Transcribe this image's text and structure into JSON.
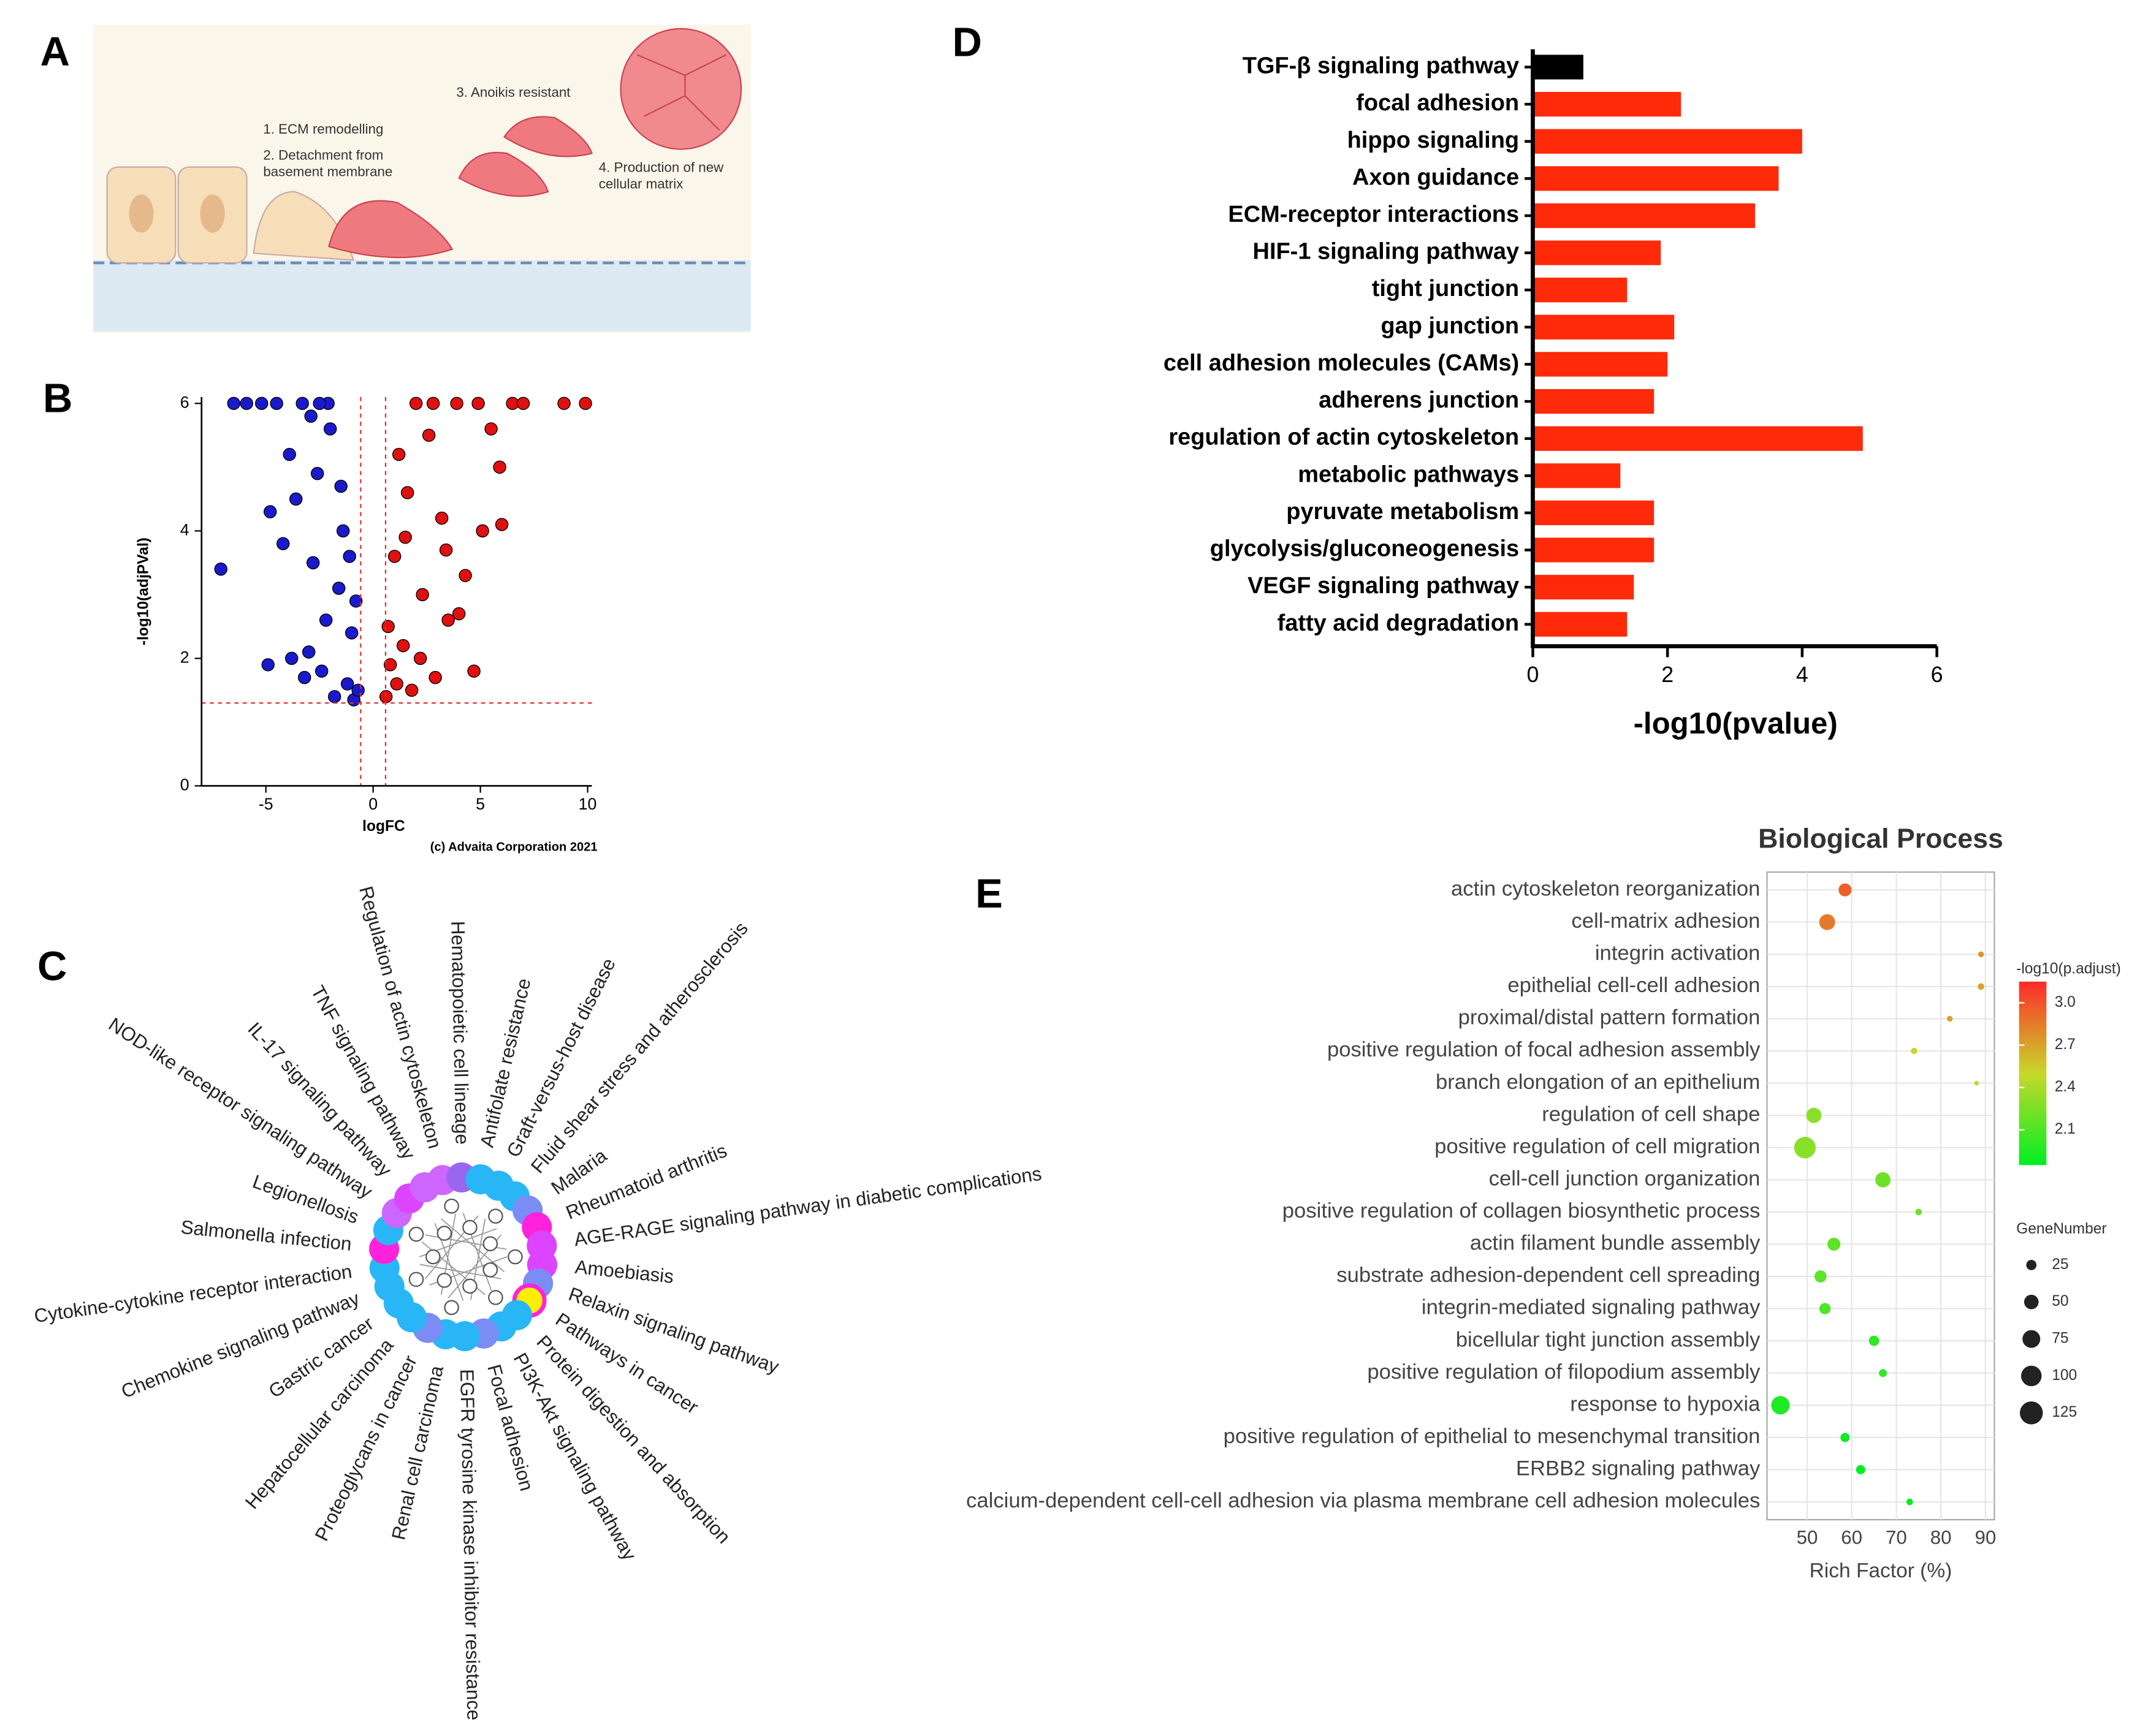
{
  "panel_a": {
    "label": "A",
    "texts": [
      "1. ECM remodelling",
      "2. Detachment from",
      "basement membrane",
      "3. Anoikis resistant",
      "4. Production of new",
      "cellular matrix"
    ]
  },
  "panel_c": {
    "label": "C",
    "nodes": [
      {
        "label": "Regulation of actin cytoskeleton",
        "color": "#cc66ff"
      },
      {
        "label": "Hematopoietic cell lineage",
        "color": "#9966ee"
      },
      {
        "label": "Antifolate resistance",
        "color": "#29b6f6"
      },
      {
        "label": "Graft-versus-host disease",
        "color": "#29b6f6"
      },
      {
        "label": "Fluid shear stress and atherosclerosis",
        "color": "#29b6f6"
      },
      {
        "label": "Malaria",
        "color": "#7b8cf5"
      },
      {
        "label": "Rheumatoid arthritis",
        "color": "#ff22dd"
      },
      {
        "label": "AGE-RAGE signaling pathway in diabetic complications",
        "color": "#dd44ff"
      },
      {
        "label": "Amoebiasis",
        "color": "#dd44ff"
      },
      {
        "label": "Relaxin signaling pathway",
        "color": "#7b8cf5"
      },
      {
        "label": "Pathways in cancer",
        "color": "#ffee00"
      },
      {
        "label": "Protein digestion and absorption",
        "color": "#29b6f6"
      },
      {
        "label": "PI3K-Akt signaling pathway",
        "color": "#29b6f6"
      },
      {
        "label": "Focal adhesion",
        "color": "#7b8cf5"
      },
      {
        "label": "EGFR tyrosine kinase inhibitor resistance",
        "color": "#29b6f6"
      },
      {
        "label": "Renal cell carcinoma",
        "color": "#29b6f6"
      },
      {
        "label": "Proteoglycans in cancer",
        "color": "#7b8cf5"
      },
      {
        "label": "Hepatocellular carcinoma",
        "color": "#29b6f6"
      },
      {
        "label": "Gastric cancer",
        "color": "#29b6f6"
      },
      {
        "label": "Chemokine signaling pathway",
        "color": "#29b6f6"
      },
      {
        "label": "Cytokine-cytokine receptor interaction",
        "color": "#29b6f6"
      },
      {
        "label": "Salmonella infection",
        "color": "#ff22dd"
      },
      {
        "label": "Legionellosis",
        "color": "#29b6f6"
      },
      {
        "label": "NOD-like receptor signaling pathway",
        "color": "#cc66ff"
      },
      {
        "label": "IL-17 signaling pathway",
        "color": "#dd44ff"
      },
      {
        "label": "TNF signaling pathway",
        "color": "#cc66ff"
      }
    ]
  },
  "chart_data": [
    {
      "panel_label": "B",
      "type": "scatter",
      "xlabel": "logFC",
      "ylabel": "-log10(adjPVal)",
      "annotation": "(c) Advaita Corporation 2021",
      "xlim": [
        -8,
        10.2
      ],
      "ylim": [
        0,
        6.1
      ],
      "xticks": [
        -5,
        0,
        5,
        10
      ],
      "yticks": [
        0,
        2,
        4,
        6
      ],
      "threshold_x": [
        -0.58,
        0.58
      ],
      "threshold_y": [
        1.3
      ],
      "threshold_color": "#e03030",
      "series": [
        {
          "color": "#1a1acc",
          "x": [
            -7.1,
            -6.5,
            -5.9,
            -5.2,
            -4.8,
            -4.5,
            -4.2,
            -3.9,
            -3.6,
            -3.3,
            -3.0,
            -2.8,
            -2.6,
            -2.4,
            -2.2,
            -2.0,
            -1.8,
            -1.6,
            -1.4,
            -1.2,
            -1.0,
            -0.9,
            -0.8,
            -0.7,
            -3.8,
            -2.9,
            -2.1,
            -1.5,
            -1.1,
            -4.9,
            -3.2,
            -2.5
          ],
          "values": [
            3.4,
            6,
            6,
            6,
            4.3,
            6,
            3.8,
            5.2,
            4.5,
            6,
            2.1,
            3.5,
            4.9,
            1.8,
            2.6,
            5.6,
            1.4,
            3.1,
            4.0,
            1.6,
            2.4,
            1.35,
            2.9,
            1.5,
            2.0,
            5.8,
            6,
            4.7,
            3.6,
            1.9,
            1.7,
            6
          ]
        },
        {
          "color": "#e01010",
          "x": [
            0.6,
            0.7,
            0.8,
            1.0,
            1.2,
            1.4,
            1.6,
            1.8,
            2.0,
            2.3,
            2.6,
            2.9,
            3.2,
            3.5,
            3.9,
            4.3,
            4.7,
            5.1,
            5.5,
            6.0,
            6.5,
            7.0,
            8.9,
            9.9,
            1.1,
            1.5,
            2.2,
            2.8,
            3.4,
            4.0,
            5.9,
            4.9
          ],
          "values": [
            1.4,
            2.5,
            1.9,
            3.6,
            5.2,
            2.2,
            4.6,
            1.5,
            6,
            3.0,
            5.5,
            1.7,
            4.2,
            2.6,
            6,
            3.3,
            1.8,
            4.0,
            5.6,
            4.1,
            6,
            6,
            6,
            6,
            1.6,
            3.9,
            2.0,
            6,
            3.7,
            2.7,
            5.0,
            6
          ]
        }
      ]
    },
    {
      "panel_label": "D",
      "type": "bar",
      "orientation": "horizontal",
      "xlabel": "-log10(pvalue)",
      "categories": [
        "TGF-β signaling pathway",
        "focal adhesion",
        "hippo signaling",
        "Axon guidance",
        "ECM-receptor interactions",
        "HIF-1 signaling pathway",
        "tight junction",
        "gap junction",
        "cell adhesion molecules (CAMs)",
        "adherens junction",
        "regulation of actin cytoskeleton",
        "metabolic pathways",
        "pyruvate metabolism",
        "glycolysis/gluconeogenesis",
        "VEGF signaling pathway",
        "fatty acid degradation"
      ],
      "values": [
        0.75,
        2.2,
        4.0,
        3.65,
        3.3,
        1.9,
        1.4,
        2.1,
        2.0,
        1.8,
        4.9,
        1.3,
        1.8,
        1.8,
        1.5,
        1.4
      ],
      "colors": [
        "#000000",
        "#ff2a0a",
        "#ff2a0a",
        "#ff2a0a",
        "#ff2a0a",
        "#ff2a0a",
        "#ff2a0a",
        "#ff2a0a",
        "#ff2a0a",
        "#ff2a0a",
        "#ff2a0a",
        "#ff2a0a",
        "#ff2a0a",
        "#ff2a0a",
        "#ff2a0a",
        "#ff2a0a"
      ],
      "xlim": [
        0,
        6
      ],
      "xticks": [
        0,
        2,
        4,
        6
      ]
    },
    {
      "panel_label": "E",
      "type": "bubble",
      "title": "Biological Process",
      "xlabel": "Rich Factor (%)",
      "categories": [
        "actin cytoskeleton reorganization",
        "cell-matrix adhesion",
        "integrin activation",
        "epithelial cell-cell adhesion",
        "proximal/distal pattern formation",
        "positive regulation of focal adhesion assembly",
        "branch elongation of an epithelium",
        "regulation of cell shape",
        "positive regulation of cell migration",
        "cell-cell junction organization",
        "positive regulation of collagen biosynthetic process",
        "actin filament bundle assembly",
        "substrate adhesion-dependent cell spreading",
        "integrin-mediated signaling pathway",
        "bicellular tight junction assembly",
        "positive regulation of filopodium assembly",
        "response to hypoxia",
        "positive regulation of epithelial to mesenchymal transition",
        "ERBB2 signaling pathway",
        "calcium-dependent cell-cell adhesion via plasma membrane cell adhesion molecules"
      ],
      "x": [
        58.5,
        54.5,
        89,
        89,
        82,
        74,
        88,
        51.5,
        49.5,
        67,
        75,
        56,
        53,
        54,
        65,
        67,
        44,
        58.5,
        62,
        73
      ],
      "color_values": [
        2.95,
        2.85,
        2.75,
        2.7,
        2.7,
        2.5,
        2.45,
        2.3,
        2.3,
        2.2,
        2.2,
        2.15,
        2.15,
        2.1,
        2.0,
        2.0,
        1.95,
        1.9,
        1.85,
        1.8
      ],
      "sizes": [
        40,
        60,
        8,
        10,
        8,
        10,
        5,
        55,
        110,
        55,
        10,
        40,
        35,
        30,
        25,
        15,
        80,
        20,
        20,
        10
      ],
      "xlim": [
        41,
        92
      ],
      "xticks": [
        50,
        60,
        70,
        80,
        90
      ],
      "grid": true,
      "color_label": "-log10(p.adjust)",
      "clim": [
        1.85,
        3.15
      ],
      "cticks": [
        {
          "value": 3,
          "label": "3.0"
        },
        2.7,
        2.4,
        2.1
      ],
      "colors": [
        "#00ee22",
        "#c8d82a",
        "#ff2a2a"
      ],
      "size_label": "GeneNumber",
      "size_ticks": [
        25,
        50,
        75,
        100,
        125
      ]
    }
  ]
}
